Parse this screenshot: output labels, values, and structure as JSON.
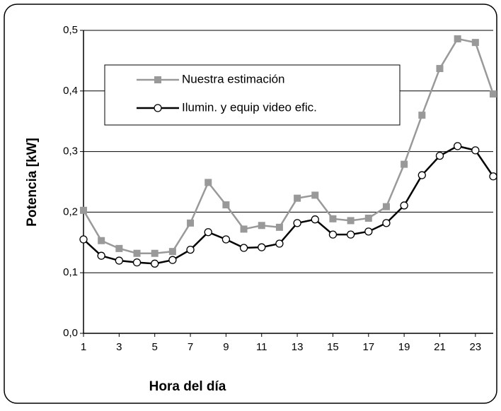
{
  "chart_data": {
    "type": "line",
    "xlabel": "Hora del día",
    "ylabel": "Potencia [kW]",
    "x": [
      1,
      2,
      3,
      4,
      5,
      6,
      7,
      8,
      9,
      10,
      11,
      12,
      13,
      14,
      15,
      16,
      17,
      18,
      19,
      20,
      21,
      22,
      23,
      24
    ],
    "xlim": [
      1,
      24
    ],
    "xticks": [
      1,
      3,
      5,
      7,
      9,
      11,
      13,
      15,
      17,
      19,
      21,
      23
    ],
    "ylim": [
      0,
      0.5
    ],
    "yticks": [
      {
        "value": 0,
        "label": "0,0"
      },
      {
        "value": 0.1,
        "label": "0,1"
      },
      {
        "value": 0.2,
        "label": "0,2"
      },
      {
        "value": 0.3,
        "label": "0,3"
      },
      {
        "value": 0.4,
        "label": "0,4"
      },
      {
        "value": 0.5,
        "label": "0,5"
      }
    ],
    "grid": true,
    "legend": "upper left",
    "series": [
      {
        "name": "Nuestra estimación",
        "color": "#999999",
        "marker": "square",
        "values": [
          0.203,
          0.153,
          0.14,
          0.132,
          0.132,
          0.135,
          0.182,
          0.249,
          0.212,
          0.172,
          0.178,
          0.175,
          0.223,
          0.228,
          0.189,
          0.186,
          0.19,
          0.209,
          0.279,
          0.36,
          0.437,
          0.486,
          0.48,
          0.395
        ]
      },
      {
        "name": "Ilumin. y equip video efic.",
        "color": "#000000",
        "marker": "circle",
        "values": [
          0.155,
          0.128,
          0.12,
          0.117,
          0.115,
          0.121,
          0.138,
          0.167,
          0.155,
          0.141,
          0.142,
          0.148,
          0.182,
          0.188,
          0.163,
          0.163,
          0.168,
          0.182,
          0.211,
          0.261,
          0.293,
          0.309,
          0.302,
          0.259
        ]
      }
    ]
  }
}
